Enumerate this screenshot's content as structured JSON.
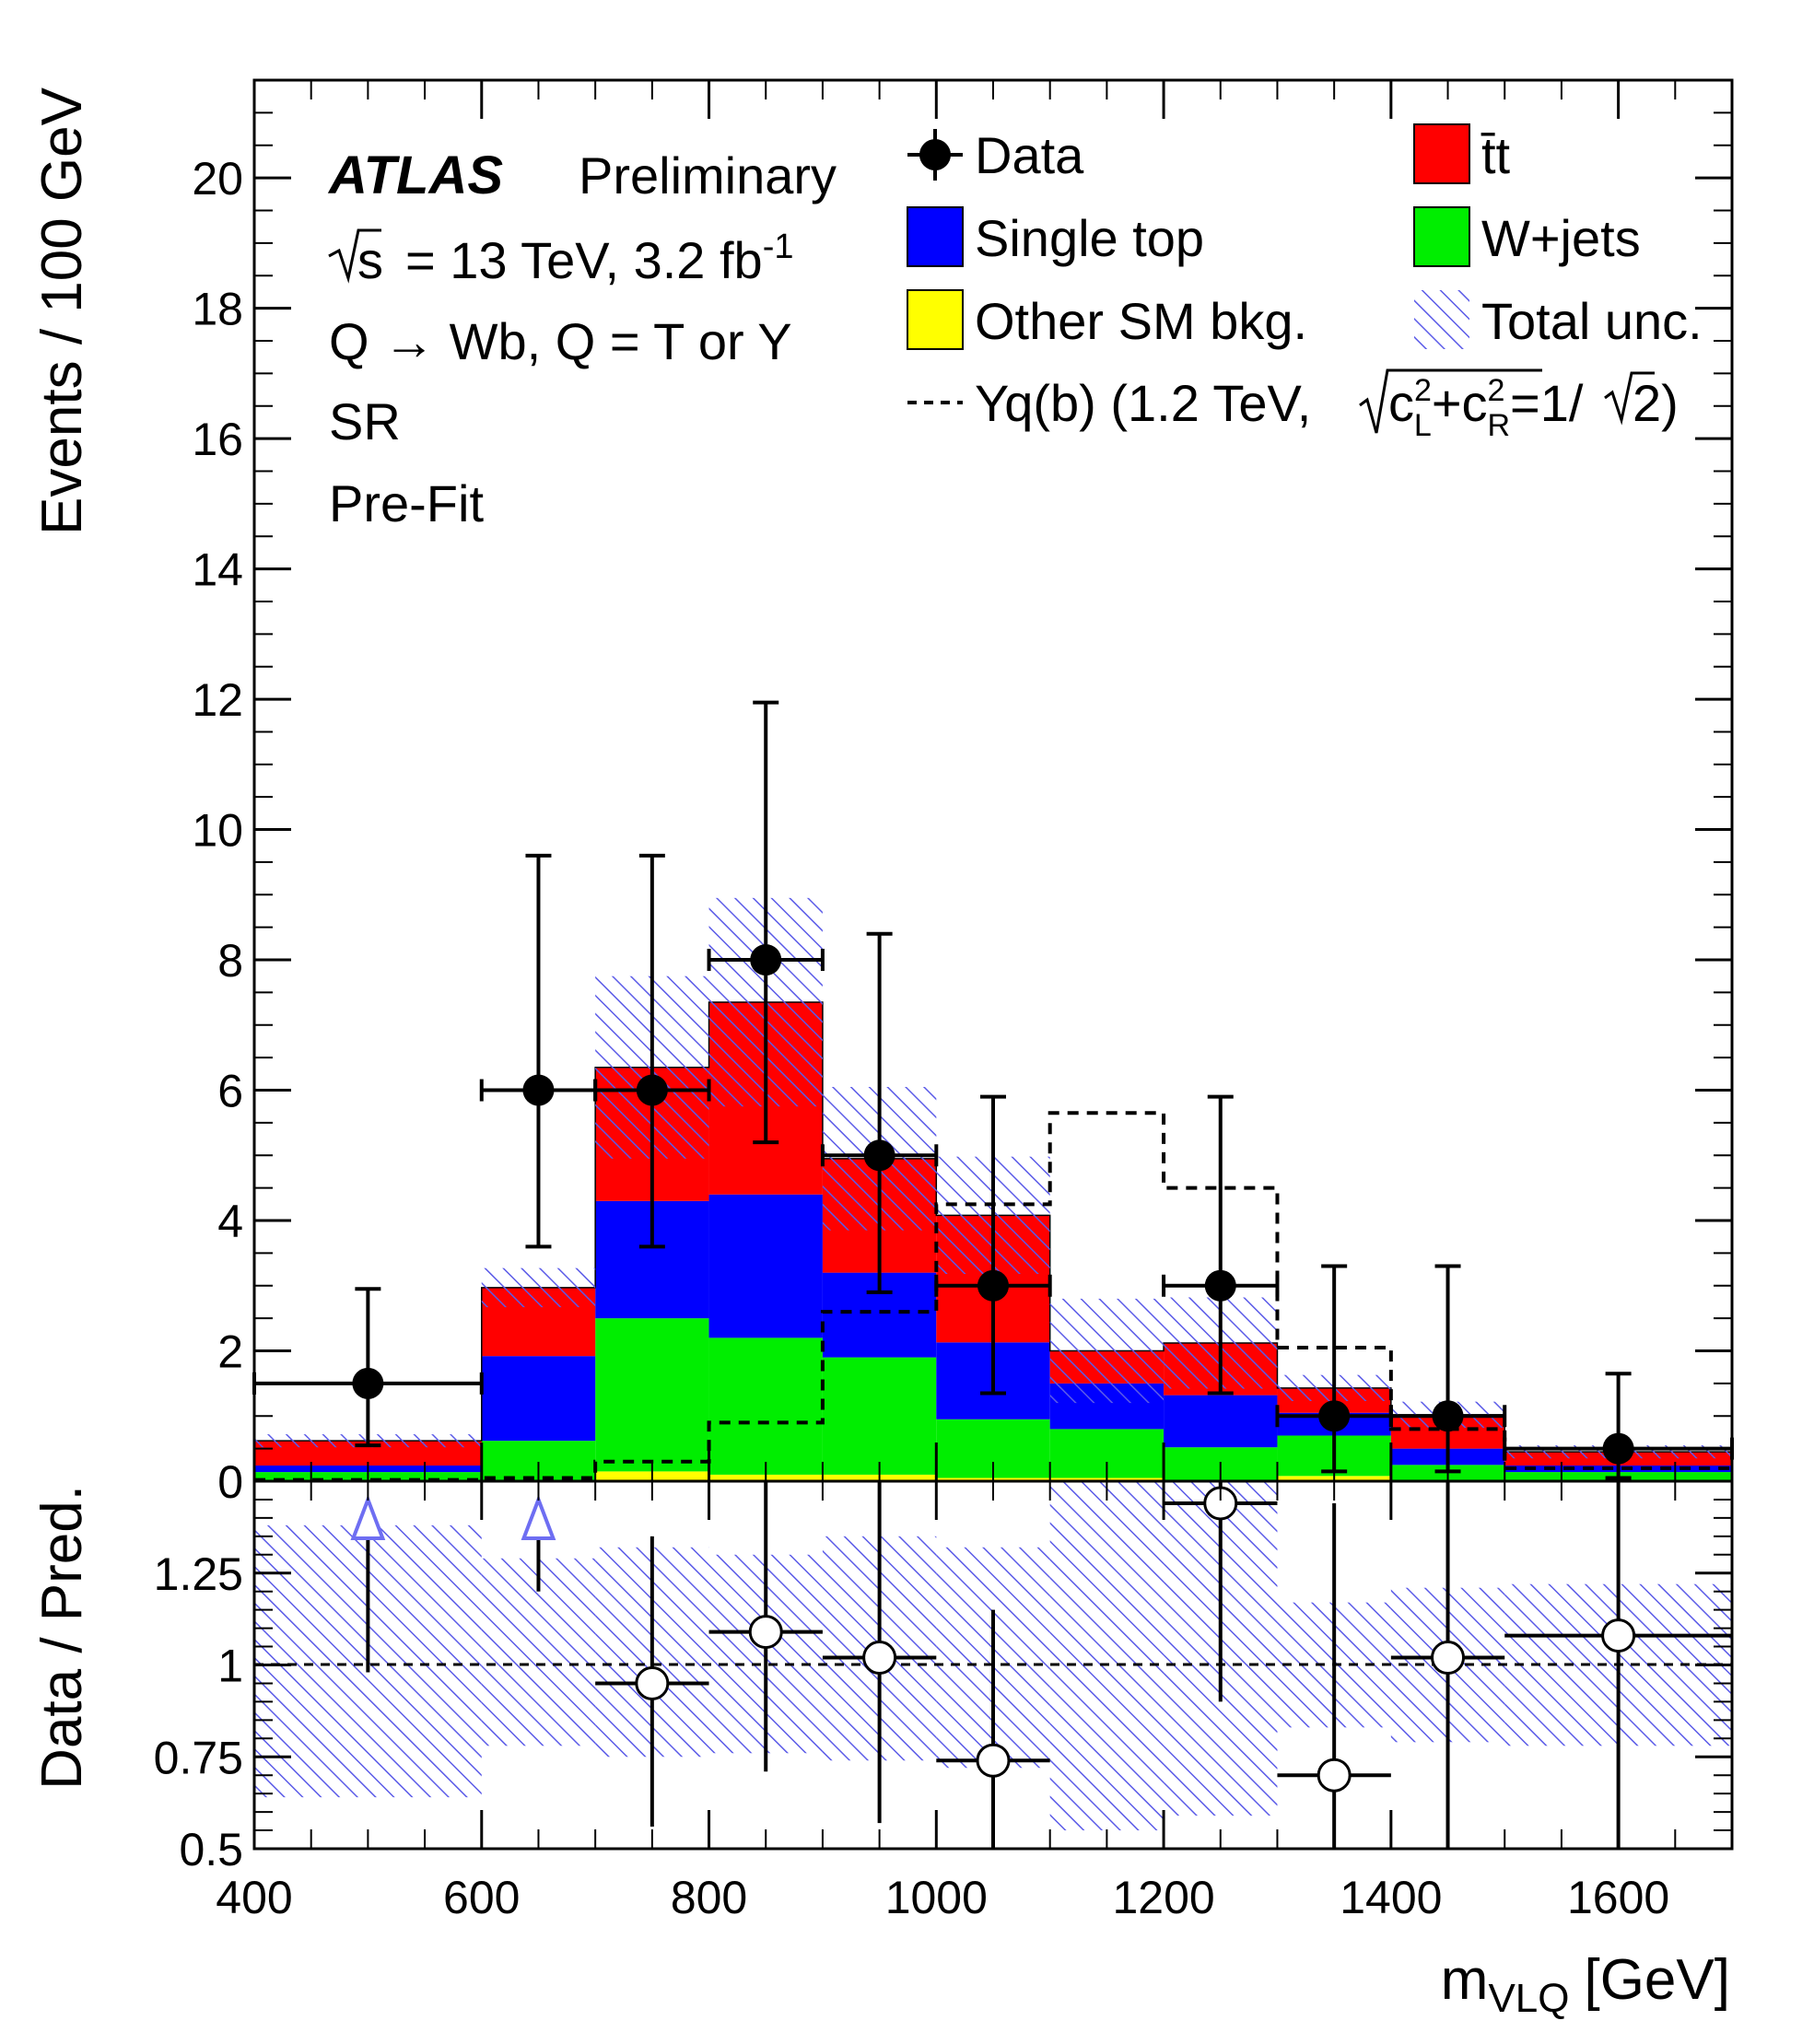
{
  "chart_data": {
    "type": "bar",
    "subtype": "stacked-histogram-with-ratio",
    "x_bins": [
      [
        400,
        600
      ],
      [
        600,
        700
      ],
      [
        700,
        800
      ],
      [
        800,
        900
      ],
      [
        900,
        1000
      ],
      [
        1000,
        1100
      ],
      [
        1100,
        1200
      ],
      [
        1200,
        1300
      ],
      [
        1300,
        1400
      ],
      [
        1400,
        1500
      ],
      [
        1500,
        1700
      ]
    ],
    "series": [
      {
        "name": "Other SM bkg.",
        "color": "#ffff00",
        "values": [
          0.02,
          0.02,
          0.15,
          0.1,
          0.1,
          0.05,
          0.05,
          0.02,
          0.08,
          0.02,
          0.02
        ]
      },
      {
        "name": "W+jets",
        "color": "#00ee00",
        "values": [
          0.12,
          0.6,
          2.35,
          2.1,
          1.8,
          0.9,
          0.75,
          0.5,
          0.62,
          0.23,
          0.12
        ]
      },
      {
        "name": "Single top",
        "color": "#0000ff",
        "values": [
          0.1,
          1.3,
          1.8,
          2.2,
          1.3,
          1.18,
          0.7,
          0.8,
          0.35,
          0.25,
          0.1
        ]
      },
      {
        "name": "t̄t",
        "color": "#ff0000",
        "values": [
          0.38,
          1.05,
          2.05,
          2.95,
          1.75,
          1.95,
          0.5,
          0.8,
          0.38,
          0.52,
          0.21
        ]
      }
    ],
    "total_unc": [
      0.1,
      0.3,
      1.4,
      1.6,
      1.1,
      0.9,
      0.8,
      0.7,
      0.2,
      0.2,
      0.1
    ],
    "data": [
      {
        "x": 500,
        "xerr": 100,
        "y": 1.5,
        "ylo": 0.55,
        "yhi": 2.95
      },
      {
        "x": 650,
        "xerr": 50,
        "y": 6,
        "ylo": 3.6,
        "yhi": 9.6
      },
      {
        "x": 750,
        "xerr": 50,
        "y": 6,
        "ylo": 3.6,
        "yhi": 9.6
      },
      {
        "x": 850,
        "xerr": 50,
        "y": 8,
        "ylo": 5.2,
        "yhi": 11.95
      },
      {
        "x": 950,
        "xerr": 50,
        "y": 5,
        "ylo": 2.9,
        "yhi": 8.4
      },
      {
        "x": 1050,
        "xerr": 50,
        "y": 3,
        "ylo": 1.35,
        "yhi": 5.9
      },
      {
        "x": 1250,
        "xerr": 50,
        "y": 3,
        "ylo": 1.35,
        "yhi": 5.9
      },
      {
        "x": 1350,
        "xerr": 50,
        "y": 1,
        "ylo": 0.15,
        "yhi": 3.3
      },
      {
        "x": 1450,
        "xerr": 50,
        "y": 1,
        "ylo": 0.15,
        "yhi": 3.3
      },
      {
        "x": 1600,
        "xerr": 100,
        "y": 0.5,
        "ylo": 0.05,
        "yhi": 1.65
      }
    ],
    "signal": {
      "name": "Yq(b) (1.2 TeV,",
      "style": "dashed",
      "values": [
        0.02,
        0.05,
        0.3,
        0.9,
        2.6,
        4.25,
        5.65,
        4.5,
        2.05,
        0.8,
        0.2
      ]
    },
    "ratio": {
      "points": [
        {
          "x": 750,
          "xerr": 50,
          "y": 0.95,
          "ylo": 0.56,
          "yhi": 1.35
        },
        {
          "x": 850,
          "xerr": 50,
          "y": 1.09,
          "ylo": 0.71,
          "yhi": 1.5
        },
        {
          "x": 950,
          "xerr": 50,
          "y": 1.02,
          "ylo": 0.57,
          "yhi": 1.5
        },
        {
          "x": 1050,
          "xerr": 50,
          "y": 0.74,
          "ylo": 0.5,
          "yhi": 1.15
        },
        {
          "x": 1250,
          "xerr": 50,
          "y": 1.44,
          "ylo": 0.9,
          "yhi": 1.5
        },
        {
          "x": 1350,
          "xerr": 50,
          "y": 0.7,
          "ylo": 0.5,
          "yhi": 1.44
        },
        {
          "x": 1450,
          "xerr": 50,
          "y": 1.02,
          "ylo": 0.5,
          "yhi": 1.5
        },
        {
          "x": 1600,
          "xerr": 100,
          "y": 1.08,
          "ylo": 0.5,
          "yhi": 1.5
        }
      ],
      "offscale_arrows": [
        {
          "x": 500,
          "ylo": 0.98
        },
        {
          "x": 650,
          "ylo": 1.2
        }
      ],
      "unc_band": [
        [
          0.64,
          1.38
        ],
        [
          0.78,
          1.29
        ],
        [
          0.75,
          1.32
        ],
        [
          0.76,
          1.3
        ],
        [
          0.74,
          1.35
        ],
        [
          0.72,
          1.32
        ],
        [
          0.55,
          1.5
        ],
        [
          0.59,
          1.5
        ],
        [
          0.83,
          1.17
        ],
        [
          0.79,
          1.21
        ],
        [
          0.78,
          1.22
        ]
      ],
      "ylim": [
        0.5,
        1.5
      ],
      "yticks": [
        {
          "v": 0.5,
          "label": "0.5"
        },
        {
          "v": 0.75,
          "label": "0.75"
        },
        {
          "v": 1,
          "label": "1"
        },
        {
          "v": 1.25,
          "label": "1.25"
        }
      ],
      "ylabel": "Data / Pred."
    },
    "xlim": [
      400,
      1700
    ],
    "ylim": [
      0,
      21.5
    ],
    "xticks": [
      400,
      600,
      800,
      1000,
      1200,
      1400,
      1600
    ],
    "yticks": [
      0,
      2,
      4,
      6,
      8,
      10,
      12,
      14,
      16,
      18,
      20
    ],
    "xlabel": "m",
    "xlabel_sub": "VLQ",
    "xlabel_unit": "[GeV]",
    "ylabel": "Events / 100 GeV",
    "grid": false,
    "legend_position": "top-right"
  },
  "annotations": {
    "experiment": "ATLAS",
    "status": "Preliminary",
    "energy_prefix": "s",
    "energy": "= 13 TeV, 3.2 fb",
    "energy_sup": "-1",
    "decay": "Q → Wb, Q = T or Y",
    "region": "SR",
    "fit": "Pre-Fit"
  },
  "legend": {
    "data": "Data",
    "ttbar": "t̄t",
    "single_top": "Single top",
    "wjets": "W+jets",
    "other": "Other SM bkg.",
    "unc": "Total unc.",
    "signal": "Yq(b) (1.2 TeV,",
    "signal_c": "c",
    "signal_L": "L",
    "signal_R": "R",
    "signal_2": "2",
    "signal_plus": "+c",
    "signal_eq": "=1/",
    "signal_root2": "2)"
  }
}
